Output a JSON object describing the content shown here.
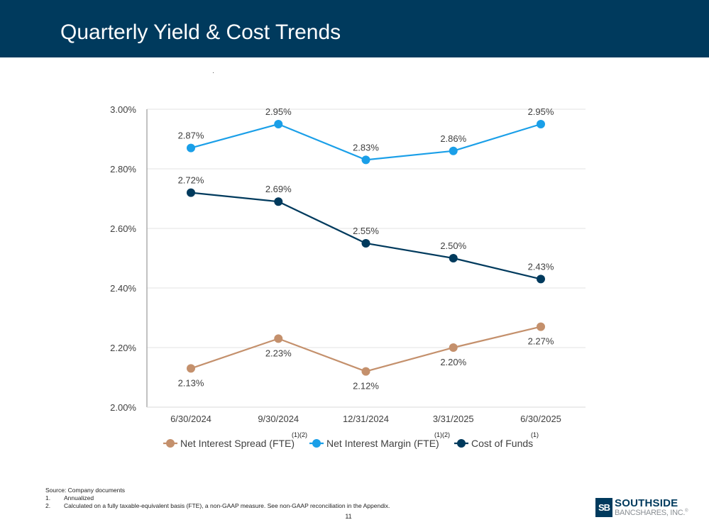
{
  "header": {
    "title": "Quarterly Yield & Cost Trends",
    "background_color": "#003a5d"
  },
  "chart_data": {
    "type": "line",
    "title": "",
    "xlabel": "",
    "ylabel": "",
    "categories": [
      "6/30/2024",
      "9/30/2024",
      "12/31/2024",
      "3/31/2025",
      "6/30/2025"
    ],
    "ylim": [
      2.0,
      3.0
    ],
    "yticks": [
      "2.00%",
      "2.20%",
      "2.40%",
      "2.60%",
      "2.80%",
      "3.00%"
    ],
    "grid": true,
    "legend_position": "bottom",
    "series": [
      {
        "name": "Net Interest Spread (FTE)",
        "superscript": "(1)(2)",
        "color": "#c4906c",
        "values": [
          2.13,
          2.23,
          2.12,
          2.2,
          2.27
        ],
        "labels": [
          "2.13%",
          "2.23%",
          "2.12%",
          "2.20%",
          "2.27%"
        ],
        "label_side": [
          "below",
          "below",
          "below",
          "below",
          "below"
        ]
      },
      {
        "name": "Net Interest Margin (FTE)",
        "superscript": "(1)(2)",
        "color": "#1a9fe8",
        "values": [
          2.87,
          2.95,
          2.83,
          2.86,
          2.95
        ],
        "labels": [
          "2.87%",
          "2.95%",
          "2.83%",
          "2.86%",
          "2.95%"
        ],
        "label_side": [
          "above",
          "above",
          "above",
          "above",
          "above"
        ]
      },
      {
        "name": "Cost of Funds",
        "superscript": "(1)",
        "color": "#003a5d",
        "values": [
          2.72,
          2.69,
          2.55,
          2.5,
          2.43
        ],
        "labels": [
          "2.72%",
          "2.69%",
          "2.55%",
          "2.50%",
          "2.43%"
        ],
        "label_side": [
          "above",
          "above",
          "above",
          "above",
          "above"
        ]
      }
    ]
  },
  "footnotes": {
    "source": "Source: Company documents",
    "items": [
      {
        "num": "1.",
        "text": "Annualized"
      },
      {
        "num": "2.",
        "text": "Calculated on a fully taxable-equivalent basis (FTE), a non-GAAP measure. See non-GAAP reconciliation in the Appendix."
      }
    ]
  },
  "page_number": "11",
  "logo": {
    "mark": "SB",
    "line1": "SOUTHSIDE",
    "line2": "BANCSHARES, INC.",
    "trademark": "®"
  }
}
